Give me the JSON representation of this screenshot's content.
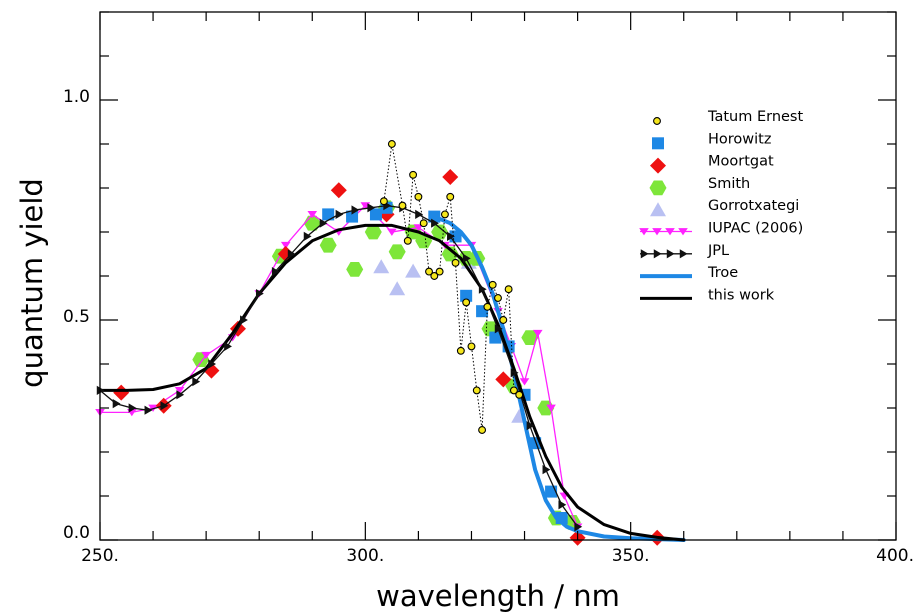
{
  "chart_data": {
    "type": "scatter",
    "xlabel": "wavelength  /  nm",
    "ylabel": "quantum  yield",
    "xlim": [
      250,
      400
    ],
    "ylim": [
      0,
      1.2
    ],
    "xticks": [
      250,
      300,
      350,
      400
    ],
    "xtick_labels": [
      "250.",
      "300.",
      "350.",
      "400."
    ],
    "yticks": [
      0,
      0.5,
      1.0
    ],
    "ytick_labels": [
      "0.0",
      "0.5",
      "1.0"
    ],
    "grid": false,
    "legend_position": "top-right",
    "series": [
      {
        "name": "Tatum Ernest",
        "marker": "circle",
        "color": "#f5e61c",
        "style": "dotted",
        "points": [
          [
            303.5,
            0.77
          ],
          [
            305,
            0.9
          ],
          [
            307,
            0.76
          ],
          [
            308,
            0.68
          ],
          [
            309,
            0.83
          ],
          [
            310,
            0.78
          ],
          [
            311,
            0.72
          ],
          [
            312,
            0.61
          ],
          [
            313,
            0.6
          ],
          [
            314,
            0.61
          ],
          [
            315,
            0.74
          ],
          [
            316,
            0.78
          ],
          [
            317,
            0.63
          ],
          [
            318,
            0.43
          ],
          [
            319,
            0.54
          ],
          [
            320,
            0.44
          ],
          [
            321,
            0.34
          ],
          [
            322,
            0.25
          ],
          [
            323,
            0.53
          ],
          [
            324,
            0.58
          ],
          [
            325,
            0.55
          ],
          [
            326,
            0.5
          ],
          [
            327,
            0.57
          ],
          [
            328,
            0.34
          ],
          [
            329,
            0.33
          ]
        ]
      },
      {
        "name": "Horowitz",
        "marker": "square",
        "color": "#1e88e5",
        "style": "none",
        "points": [
          [
            293,
            0.74
          ],
          [
            297.5,
            0.735
          ],
          [
            302,
            0.74
          ],
          [
            304,
            0.755
          ],
          [
            313,
            0.735
          ],
          [
            317,
            0.69
          ],
          [
            319,
            0.555
          ],
          [
            322,
            0.52
          ],
          [
            324.5,
            0.46
          ],
          [
            327,
            0.44
          ],
          [
            330,
            0.33
          ],
          [
            332,
            0.22
          ],
          [
            335,
            0.11
          ],
          [
            337,
            0.05
          ]
        ]
      },
      {
        "name": "Moortgat",
        "marker": "diamond",
        "color": "#ee1111",
        "style": "none",
        "points": [
          [
            254,
            0.335
          ],
          [
            262,
            0.305
          ],
          [
            271,
            0.385
          ],
          [
            276,
            0.48
          ],
          [
            285,
            0.65
          ],
          [
            295,
            0.795
          ],
          [
            304,
            0.74
          ],
          [
            316,
            0.825
          ],
          [
            326,
            0.365
          ],
          [
            340,
            0.005
          ],
          [
            355,
            0.005
          ]
        ]
      },
      {
        "name": "Smith",
        "marker": "hexagon",
        "color": "#7ee63a",
        "style": "none",
        "points": [
          [
            269,
            0.41
          ],
          [
            284,
            0.645
          ],
          [
            290,
            0.72
          ],
          [
            293,
            0.67
          ],
          [
            298,
            0.615
          ],
          [
            301.5,
            0.7
          ],
          [
            304,
            0.755
          ],
          [
            306,
            0.655
          ],
          [
            309,
            0.7
          ],
          [
            311,
            0.68
          ],
          [
            314,
            0.7
          ],
          [
            316,
            0.65
          ],
          [
            319,
            0.64
          ],
          [
            321,
            0.64
          ],
          [
            323.5,
            0.48
          ],
          [
            328,
            0.35
          ],
          [
            331,
            0.46
          ],
          [
            334,
            0.3
          ],
          [
            336,
            0.05
          ],
          [
            339,
            0.04
          ]
        ]
      },
      {
        "name": "Gorrotxategi",
        "marker": "triangle-up",
        "color": "#b9c0f2",
        "style": "none",
        "points": [
          [
            303,
            0.62
          ],
          [
            306,
            0.57
          ],
          [
            309,
            0.61
          ],
          [
            319.5,
            0.63
          ],
          [
            329,
            0.28
          ]
        ]
      },
      {
        "name": "IUPAC (2006)",
        "marker": "triangle-down",
        "color": "#ff22ff",
        "style": "solid",
        "points": [
          [
            250,
            0.29
          ],
          [
            256,
            0.29
          ],
          [
            260,
            0.3
          ],
          [
            265,
            0.34
          ],
          [
            270,
            0.42
          ],
          [
            275,
            0.46
          ],
          [
            280,
            0.56
          ],
          [
            285,
            0.67
          ],
          [
            290,
            0.74
          ],
          [
            295,
            0.7
          ],
          [
            300,
            0.76
          ],
          [
            305,
            0.7
          ],
          [
            310,
            0.71
          ],
          [
            315,
            0.67
          ],
          [
            320,
            0.67
          ],
          [
            325,
            0.52
          ],
          [
            327.5,
            0.44
          ],
          [
            330,
            0.36
          ],
          [
            332.5,
            0.47
          ],
          [
            335,
            0.3
          ],
          [
            337.5,
            0.1
          ],
          [
            340,
            0.03
          ]
        ]
      },
      {
        "name": "JPL",
        "marker": "triangle-right",
        "color": "#111111",
        "style": "solid",
        "points": [
          [
            250,
            0.34
          ],
          [
            253,
            0.31
          ],
          [
            256,
            0.3
          ],
          [
            259,
            0.295
          ],
          [
            262,
            0.305
          ],
          [
            265,
            0.33
          ],
          [
            268,
            0.36
          ],
          [
            271,
            0.4
          ],
          [
            274,
            0.44
          ],
          [
            277,
            0.5
          ],
          [
            280,
            0.56
          ],
          [
            283,
            0.61
          ],
          [
            286,
            0.65
          ],
          [
            289,
            0.69
          ],
          [
            292,
            0.72
          ],
          [
            295,
            0.74
          ],
          [
            298,
            0.75
          ],
          [
            301,
            0.755
          ],
          [
            304,
            0.76
          ],
          [
            307,
            0.755
          ],
          [
            310,
            0.74
          ],
          [
            313,
            0.72
          ],
          [
            316,
            0.69
          ],
          [
            319,
            0.64
          ],
          [
            322,
            0.57
          ],
          [
            325,
            0.48
          ],
          [
            328,
            0.38
          ],
          [
            331,
            0.26
          ],
          [
            334,
            0.16
          ],
          [
            337,
            0.08
          ],
          [
            340,
            0.03
          ]
        ]
      }
    ],
    "curves": [
      {
        "name": "Troe",
        "color": "#1e88e5",
        "width": 4,
        "points": [
          [
            314,
            0.73
          ],
          [
            316,
            0.72
          ],
          [
            318,
            0.7
          ],
          [
            320,
            0.67
          ],
          [
            322,
            0.62
          ],
          [
            324,
            0.56
          ],
          [
            326,
            0.48
          ],
          [
            328,
            0.38
          ],
          [
            330,
            0.27
          ],
          [
            332,
            0.16
          ],
          [
            334,
            0.09
          ],
          [
            336,
            0.05
          ],
          [
            338,
            0.03
          ],
          [
            340,
            0.02
          ],
          [
            345,
            0.008
          ],
          [
            350,
            0.004
          ],
          [
            360,
            0.0
          ]
        ]
      },
      {
        "name": "this work",
        "color": "#000000",
        "width": 3,
        "points": [
          [
            250,
            0.34
          ],
          [
            255,
            0.34
          ],
          [
            260,
            0.342
          ],
          [
            265,
            0.355
          ],
          [
            270,
            0.39
          ],
          [
            275,
            0.47
          ],
          [
            280,
            0.56
          ],
          [
            285,
            0.63
          ],
          [
            290,
            0.68
          ],
          [
            295,
            0.705
          ],
          [
            300,
            0.715
          ],
          [
            305,
            0.715
          ],
          [
            310,
            0.7
          ],
          [
            314,
            0.68
          ],
          [
            318,
            0.64
          ],
          [
            322,
            0.57
          ],
          [
            325,
            0.49
          ],
          [
            328,
            0.39
          ],
          [
            331,
            0.28
          ],
          [
            334,
            0.19
          ],
          [
            337,
            0.12
          ],
          [
            340,
            0.075
          ],
          [
            345,
            0.035
          ],
          [
            350,
            0.015
          ],
          [
            355,
            0.006
          ],
          [
            360,
            0.0
          ]
        ]
      }
    ]
  }
}
